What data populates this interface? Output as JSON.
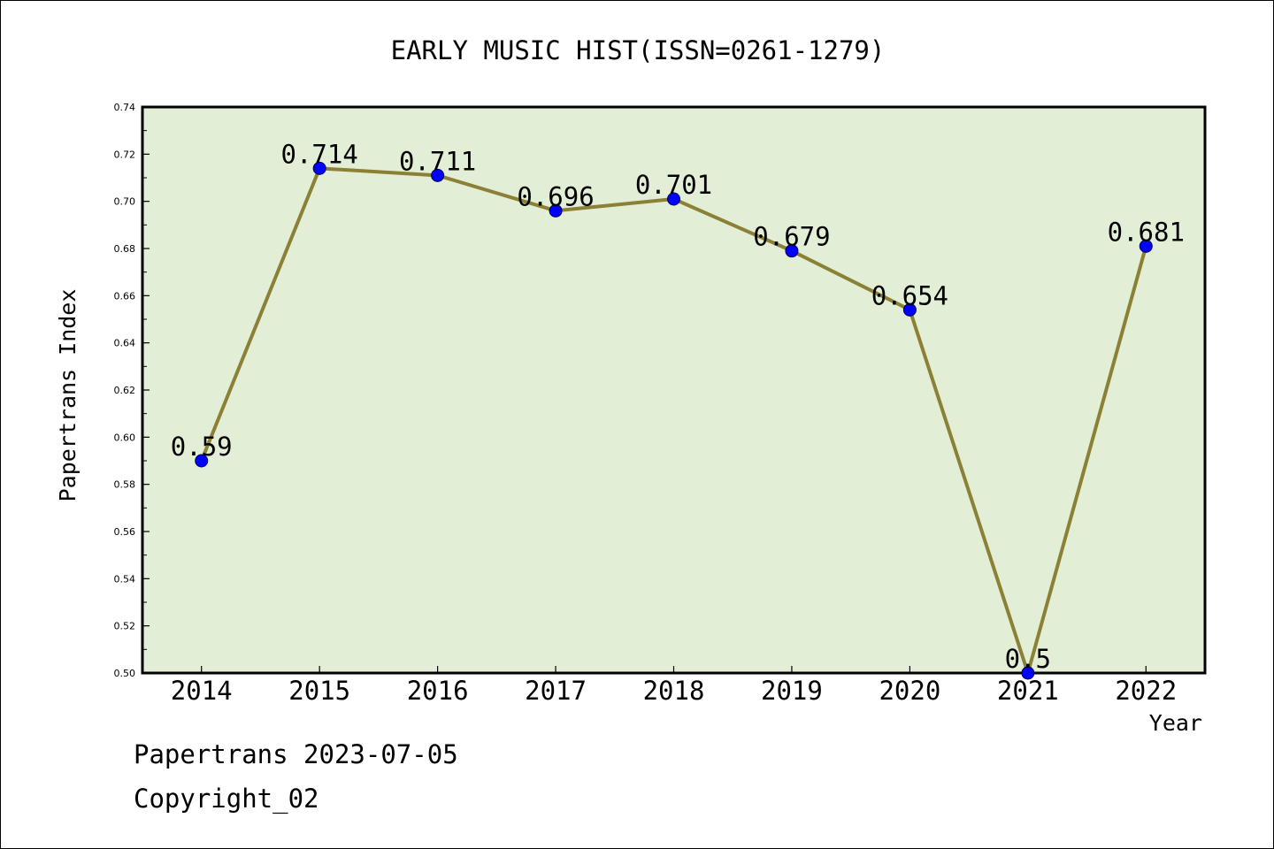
{
  "chart_data": {
    "type": "line",
    "title": "EARLY MUSIC HIST(ISSN=0261-1279)",
    "xlabel": "Year",
    "ylabel": "Papertrans Index",
    "categories": [
      "2014",
      "2015",
      "2016",
      "2017",
      "2018",
      "2019",
      "2020",
      "2021",
      "2022"
    ],
    "series": [
      {
        "values": [
          0.59,
          0.714,
          0.711,
          0.696,
          0.701,
          0.679,
          0.654,
          0.5,
          0.681
        ],
        "labels": [
          "0.59",
          "0.714",
          "0.711",
          "0.696",
          "0.701",
          "0.679",
          "0.654",
          "0.5",
          "0.681"
        ]
      }
    ],
    "ylim": [
      0.5,
      0.74
    ],
    "yticks": [
      "0.50",
      "0.52",
      "0.54",
      "0.56",
      "0.58",
      "0.60",
      "0.62",
      "0.64",
      "0.66",
      "0.68",
      "0.70",
      "0.72",
      "0.74"
    ],
    "grid": false,
    "colors": {
      "plot_background": "#e2efd6",
      "line": "#8b8035",
      "marker": "#0000ff"
    }
  },
  "footer": {
    "line1": "Papertrans 2023-07-05",
    "line2": "Copyright_02"
  }
}
